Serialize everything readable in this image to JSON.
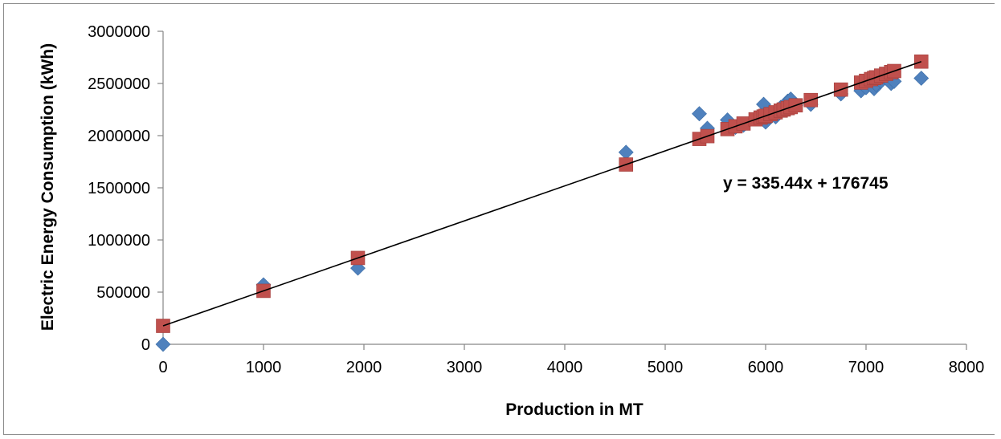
{
  "chart_data": {
    "type": "scatter",
    "title": "",
    "xlabel": "Production in MT",
    "ylabel": "Electric Energy Consumption (kWh)",
    "xlim": [
      0,
      8000
    ],
    "ylim": [
      0,
      3000000
    ],
    "x_ticks": [
      0,
      1000,
      2000,
      3000,
      4000,
      5000,
      6000,
      7000,
      8000
    ],
    "y_ticks": [
      0,
      500000,
      1000000,
      1500000,
      2000000,
      2500000,
      3000000
    ],
    "x_tick_labels": [
      "0",
      "1000",
      "2000",
      "3000",
      "4000",
      "5000",
      "6000",
      "7000",
      "8000"
    ],
    "y_tick_labels": [
      "0",
      "500000",
      "1000000",
      "1500000",
      "2000000",
      "2500000",
      "3000000"
    ],
    "grid": false,
    "legend": "none",
    "colors": {
      "actual": "#4f81bd",
      "predicted": "#c0504d",
      "trendline": "#000000"
    },
    "trendline": {
      "slope": 335.44,
      "intercept": 176745,
      "x_range": [
        0,
        7550
      ],
      "label": "y = 335.44x + 176745"
    },
    "series": [
      {
        "marker": "diamond",
        "x": [
          0,
          1000,
          1940,
          4610,
          5340,
          5420,
          5620,
          5700,
          5780,
          5900,
          5950,
          5980,
          6000,
          6050,
          6100,
          6150,
          6180,
          6220,
          6250,
          6300,
          6450,
          6750,
          6950,
          7000,
          7050,
          7080,
          7100,
          7150,
          7200,
          7250,
          7280,
          7550
        ],
        "y": [
          0,
          570000,
          730000,
          1840000,
          2210000,
          2070000,
          2150000,
          2080000,
          2100000,
          2170000,
          2180000,
          2300000,
          2130000,
          2200000,
          2180000,
          2270000,
          2250000,
          2330000,
          2350000,
          2290000,
          2300000,
          2400000,
          2430000,
          2460000,
          2500000,
          2450000,
          2490000,
          2520000,
          2550000,
          2500000,
          2520000,
          2550000
        ]
      },
      {
        "marker": "square",
        "x": [
          0,
          1000,
          1940,
          4610,
          5340,
          5420,
          5620,
          5700,
          5780,
          5900,
          5950,
          5980,
          6000,
          6050,
          6100,
          6150,
          6180,
          6220,
          6250,
          6300,
          6450,
          6750,
          6950,
          7000,
          7050,
          7080,
          7100,
          7150,
          7200,
          7250,
          7280,
          7550
        ],
        "y": [
          176745,
          512185,
          827499,
          1723123,
          1968494,
          1995329,
          2062417,
          2089252,
          2116087,
          2156340,
          2173112,
          2183175,
          2189884,
          2206656,
          2223428,
          2240200,
          2250263,
          2263681,
          2273744,
          2290516,
          2340832,
          2441464,
          2508552,
          2525324,
          2542096,
          2552159,
          2558868,
          2575640,
          2592412,
          2609184,
          2619247,
          2709816
        ]
      }
    ]
  }
}
